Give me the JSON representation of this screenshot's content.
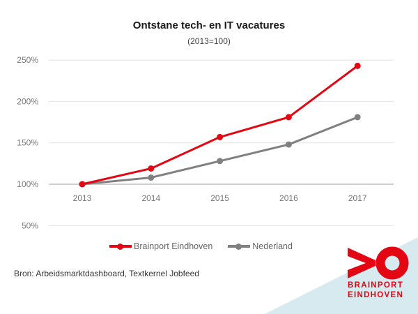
{
  "title": "Ontstane tech- en IT vacatures",
  "subtitle": "(2013=100)",
  "source": "Bron: Arbeidsmarktdashboard, Textkernel Jobfeed",
  "logo": {
    "line1": "BRAINPORT",
    "line2": "EINDHOVEN",
    "color": "#e30613",
    "bg_color": "#d6eaf0"
  },
  "y_ticks": [
    "250%",
    "200%",
    "150%",
    "100%",
    "50%"
  ],
  "x_ticks": [
    "2013",
    "2014",
    "2015",
    "2016",
    "2017"
  ],
  "legend": [
    {
      "label": "Brainport Eindhoven",
      "color": "#e30613"
    },
    {
      "label": "Nederland",
      "color": "#808080"
    }
  ],
  "chart_data": {
    "type": "line",
    "title": "Ontstane tech- en IT vacatures",
    "subtitle": "(2013=100)",
    "x": [
      "2013",
      "2014",
      "2015",
      "2016",
      "2017"
    ],
    "series": [
      {
        "name": "Brainport Eindhoven",
        "color": "#e30613",
        "values": [
          100,
          119,
          157,
          181,
          243
        ]
      },
      {
        "name": "Nederland",
        "color": "#808080",
        "values": [
          100,
          108,
          128,
          148,
          181
        ]
      }
    ],
    "xlabel": "",
    "ylabel": "",
    "ylim": [
      50,
      250
    ],
    "y_ticks": [
      50,
      100,
      150,
      200,
      250
    ],
    "y_tick_format": "percent",
    "grid": true,
    "legend_position": "bottom",
    "source": "Bron: Arbeidsmarktdashboard, Textkernel Jobfeed"
  }
}
